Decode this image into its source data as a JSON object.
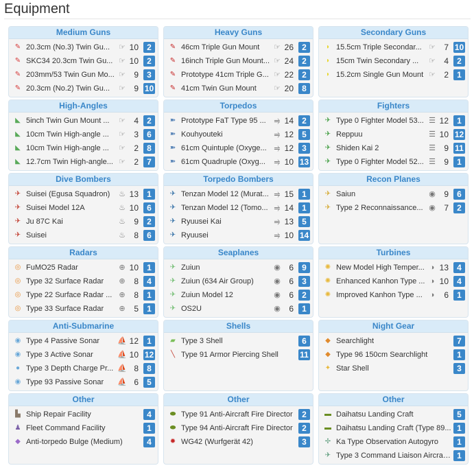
{
  "page": {
    "title": "Equipment"
  },
  "panels": [
    {
      "title": "Medium Guns",
      "items": [
        {
          "name": "20.3cm (No.3) Twin Gu...",
          "stat_icon": "firepower-icon",
          "stat": "10",
          "count": "2",
          "icon": "medium-gun-icon",
          "color": "#d53b3b"
        },
        {
          "name": "SKC34 20.3cm Twin Gu...",
          "stat_icon": "firepower-icon",
          "stat": "10",
          "count": "2",
          "icon": "medium-gun-icon",
          "color": "#d53b3b"
        },
        {
          "name": "203mm/53 Twin Gun Mo...",
          "stat_icon": "firepower-icon",
          "stat": "9",
          "count": "3",
          "icon": "medium-gun-icon",
          "color": "#d53b3b"
        },
        {
          "name": "20.3cm (No.2) Twin Gu...",
          "stat_icon": "firepower-icon",
          "stat": "9",
          "count": "10",
          "icon": "medium-gun-icon",
          "color": "#d53b3b"
        }
      ]
    },
    {
      "title": "Heavy Guns",
      "items": [
        {
          "name": "46cm Triple Gun Mount",
          "stat_icon": "firepower-icon",
          "stat": "26",
          "count": "2",
          "icon": "heavy-gun-icon",
          "color": "#c62828"
        },
        {
          "name": "16inch Triple Gun Mount...",
          "stat_icon": "firepower-icon",
          "stat": "24",
          "count": "2",
          "icon": "heavy-gun-icon",
          "color": "#c62828"
        },
        {
          "name": "Prototype 41cm Triple G...",
          "stat_icon": "firepower-icon",
          "stat": "22",
          "count": "2",
          "icon": "heavy-gun-icon",
          "color": "#c62828"
        },
        {
          "name": "41cm Twin Gun Mount",
          "stat_icon": "firepower-icon",
          "stat": "20",
          "count": "8",
          "icon": "heavy-gun-icon",
          "color": "#c62828"
        }
      ]
    },
    {
      "title": "Secondary Guns",
      "items": [
        {
          "name": "15.5cm Triple Secondar...",
          "stat_icon": "firepower-icon",
          "stat": "7",
          "count": "10",
          "icon": "secondary-gun-icon",
          "color": "#e8d630"
        },
        {
          "name": "15cm Twin Secondary ...",
          "stat_icon": "firepower-icon",
          "stat": "4",
          "count": "2",
          "icon": "secondary-gun-icon",
          "color": "#e8d630"
        },
        {
          "name": "15.2cm Single Gun Mount",
          "stat_icon": "firepower-icon",
          "stat": "2",
          "count": "1",
          "icon": "secondary-gun-icon",
          "color": "#e8d630"
        }
      ]
    },
    {
      "title": "High-Angles",
      "items": [
        {
          "name": "5inch Twin Gun Mount ...",
          "stat_icon": "firepower-icon",
          "stat": "4",
          "count": "2",
          "icon": "high-angle-icon",
          "color": "#5aaa5a"
        },
        {
          "name": "10cm Twin High-angle ...",
          "stat_icon": "firepower-icon",
          "stat": "3",
          "count": "6",
          "icon": "high-angle-icon",
          "color": "#5aaa5a"
        },
        {
          "name": "10cm Twin High-angle ...",
          "stat_icon": "firepower-icon",
          "stat": "2",
          "count": "8",
          "icon": "high-angle-icon",
          "color": "#5aaa5a"
        },
        {
          "name": "12.7cm Twin High-angle...",
          "stat_icon": "firepower-icon",
          "stat": "2",
          "count": "7",
          "icon": "high-angle-icon",
          "color": "#5aaa5a"
        }
      ]
    },
    {
      "title": "Torpedos",
      "items": [
        {
          "name": "Prototype FaT Type 95 ...",
          "stat_icon": "torpedo-stat-icon",
          "stat": "14",
          "count": "2",
          "icon": "torpedo-icon",
          "color": "#5b86b8"
        },
        {
          "name": "Kouhyouteki",
          "stat_icon": "torpedo-stat-icon",
          "stat": "12",
          "count": "5",
          "icon": "torpedo-icon",
          "color": "#5b86b8"
        },
        {
          "name": "61cm Quintuple (Oxyge...",
          "stat_icon": "torpedo-stat-icon",
          "stat": "12",
          "count": "3",
          "icon": "torpedo-icon",
          "color": "#5b86b8"
        },
        {
          "name": "61cm Quadruple (Oxyg...",
          "stat_icon": "torpedo-stat-icon",
          "stat": "10",
          "count": "13",
          "icon": "torpedo-icon",
          "color": "#5b86b8"
        }
      ]
    },
    {
      "title": "Fighters",
      "items": [
        {
          "name": "Type 0 Fighter Model 53...",
          "stat_icon": "anti-air-icon",
          "stat": "12",
          "count": "1",
          "icon": "fighter-icon",
          "color": "#3d9b3d"
        },
        {
          "name": "Reppuu",
          "stat_icon": "anti-air-icon",
          "stat": "10",
          "count": "12",
          "icon": "fighter-icon",
          "color": "#3d9b3d"
        },
        {
          "name": "Shiden Kai 2",
          "stat_icon": "anti-air-icon",
          "stat": "9",
          "count": "11",
          "icon": "fighter-icon",
          "color": "#3d9b3d"
        },
        {
          "name": "Type 0 Fighter Model 52...",
          "stat_icon": "anti-air-icon",
          "stat": "9",
          "count": "1",
          "icon": "fighter-icon",
          "color": "#3d9b3d"
        }
      ]
    },
    {
      "title": "Dive Bombers",
      "items": [
        {
          "name": "Suisei (Egusa Squadron)",
          "stat_icon": "bomb-stat-icon",
          "stat": "13",
          "count": "1",
          "icon": "dive-bomber-icon",
          "color": "#c0392b"
        },
        {
          "name": "Suisei Model 12A",
          "stat_icon": "bomb-stat-icon",
          "stat": "10",
          "count": "6",
          "icon": "dive-bomber-icon",
          "color": "#c0392b"
        },
        {
          "name": "Ju 87C Kai",
          "stat_icon": "bomb-stat-icon",
          "stat": "9",
          "count": "2",
          "icon": "dive-bomber-icon",
          "color": "#c0392b"
        },
        {
          "name": "Suisei",
          "stat_icon": "bomb-stat-icon",
          "stat": "8",
          "count": "6",
          "icon": "dive-bomber-icon",
          "color": "#c0392b"
        }
      ]
    },
    {
      "title": "Torpedo Bombers",
      "items": [
        {
          "name": "Tenzan Model 12 (Murat...",
          "stat_icon": "torpedo-stat-icon",
          "stat": "15",
          "count": "1",
          "icon": "torpedo-bomber-icon",
          "color": "#2e6da4"
        },
        {
          "name": "Tenzan Model 12 (Tomo...",
          "stat_icon": "torpedo-stat-icon",
          "stat": "14",
          "count": "1",
          "icon": "torpedo-bomber-icon",
          "color": "#2e6da4"
        },
        {
          "name": "Ryuusei Kai",
          "stat_icon": "torpedo-stat-icon",
          "stat": "13",
          "count": "5",
          "icon": "torpedo-bomber-icon",
          "color": "#2e6da4"
        },
        {
          "name": "Ryuusei",
          "stat_icon": "torpedo-stat-icon",
          "stat": "10",
          "count": "14",
          "icon": "torpedo-bomber-icon",
          "color": "#2e6da4"
        }
      ]
    },
    {
      "title": "Recon Planes",
      "items": [
        {
          "name": "Saiun",
          "stat_icon": "los-eye-icon",
          "stat": "9",
          "count": "6",
          "icon": "recon-plane-icon",
          "color": "#d4a72c"
        },
        {
          "name": "Type 2 Reconnaissance...",
          "stat_icon": "los-eye-icon",
          "stat": "7",
          "count": "2",
          "icon": "recon-plane-icon",
          "color": "#d4a72c"
        }
      ]
    },
    {
      "title": "Radars",
      "items": [
        {
          "name": "FuMO25 Radar",
          "stat_icon": "accuracy-icon",
          "stat": "10",
          "count": "1",
          "icon": "radar-icon",
          "color": "#e8923a"
        },
        {
          "name": "Type 32 Surface Radar",
          "stat_icon": "accuracy-icon",
          "stat": "8",
          "count": "4",
          "icon": "radar-icon",
          "color": "#e8923a"
        },
        {
          "name": "Type 22 Surface Radar ...",
          "stat_icon": "accuracy-icon",
          "stat": "8",
          "count": "1",
          "icon": "radar-icon",
          "color": "#e8923a"
        },
        {
          "name": "Type 33 Surface Radar",
          "stat_icon": "accuracy-icon",
          "stat": "5",
          "count": "1",
          "icon": "radar-icon",
          "color": "#e8923a"
        }
      ]
    },
    {
      "title": "Seaplanes",
      "items": [
        {
          "name": "Zuiun",
          "stat_icon": "los-eye-icon",
          "stat": "6",
          "count": "9",
          "icon": "seaplane-icon",
          "color": "#6dbb6d"
        },
        {
          "name": "Zuiun (634 Air Group)",
          "stat_icon": "los-eye-icon",
          "stat": "6",
          "count": "3",
          "icon": "seaplane-icon",
          "color": "#6dbb6d"
        },
        {
          "name": "Zuiun Model 12",
          "stat_icon": "los-eye-icon",
          "stat": "6",
          "count": "2",
          "icon": "seaplane-icon",
          "color": "#6dbb6d"
        },
        {
          "name": "OS2U",
          "stat_icon": "los-eye-icon",
          "stat": "6",
          "count": "1",
          "icon": "seaplane-icon",
          "color": "#6dbb6d"
        }
      ]
    },
    {
      "title": "Turbines",
      "items": [
        {
          "name": "New Model High Temper...",
          "stat_icon": "evasion-icon",
          "stat": "13",
          "count": "4",
          "icon": "turbine-icon",
          "color": "#e8b83a"
        },
        {
          "name": "Enhanced Kanhon Type ...",
          "stat_icon": "evasion-icon",
          "stat": "10",
          "count": "4",
          "icon": "turbine-icon",
          "color": "#e8b83a"
        },
        {
          "name": "Improved Kanhon Type ...",
          "stat_icon": "evasion-icon",
          "stat": "6",
          "count": "1",
          "icon": "turbine-icon",
          "color": "#e8b83a"
        }
      ]
    },
    {
      "title": "Anti-Submarine",
      "items": [
        {
          "name": "Type 4 Passive Sonar",
          "stat_icon": "asw-icon",
          "stat": "12",
          "count": "1",
          "icon": "sonar-icon",
          "color": "#6aa8d8"
        },
        {
          "name": "Type 3 Active Sonar",
          "stat_icon": "asw-icon",
          "stat": "10",
          "count": "12",
          "icon": "sonar-icon",
          "color": "#6aa8d8"
        },
        {
          "name": "Type 3 Depth Charge Pr...",
          "stat_icon": "asw-icon",
          "stat": "8",
          "count": "8",
          "icon": "depth-charge-icon",
          "color": "#6aa8d8"
        },
        {
          "name": "Type 93 Passive Sonar",
          "stat_icon": "asw-icon",
          "stat": "6",
          "count": "5",
          "icon": "sonar-icon",
          "color": "#6aa8d8"
        }
      ]
    },
    {
      "title": "Shells",
      "items": [
        {
          "name": "Type 3 Shell",
          "stat_icon": "",
          "stat": "",
          "count": "6",
          "icon": "shell-icon",
          "color": "#7cbf5a"
        },
        {
          "name": "Type 91 Armor Piercing Shell",
          "stat_icon": "",
          "stat": "",
          "count": "11",
          "icon": "ap-shell-icon",
          "color": "#c0392b"
        }
      ]
    },
    {
      "title": "Night Gear",
      "items": [
        {
          "name": "Searchlight",
          "stat_icon": "",
          "stat": "",
          "count": "7",
          "icon": "searchlight-icon",
          "color": "#e08a2c"
        },
        {
          "name": "Type 96 150cm Searchlight",
          "stat_icon": "",
          "stat": "",
          "count": "1",
          "icon": "searchlight-icon",
          "color": "#e08a2c"
        },
        {
          "name": "Star Shell",
          "stat_icon": "",
          "stat": "",
          "count": "3",
          "icon": "star-shell-icon",
          "color": "#e8b83a"
        }
      ]
    },
    {
      "title": "Other",
      "items": [
        {
          "name": "Ship Repair Facility",
          "stat_icon": "",
          "stat": "",
          "count": "4",
          "icon": "repair-facility-icon",
          "color": "#8a7a6a"
        },
        {
          "name": "Fleet Command Facility",
          "stat_icon": "",
          "stat": "",
          "count": "1",
          "icon": "command-facility-icon",
          "color": "#7a5fa8"
        },
        {
          "name": "Anti-torpedo Bulge (Medium)",
          "stat_icon": "",
          "stat": "",
          "count": "4",
          "icon": "bulge-icon",
          "color": "#9a6ac8"
        }
      ]
    },
    {
      "title": "Other",
      "items": [
        {
          "name": "Type 91 Anti-Aircraft Fire Director",
          "stat_icon": "",
          "stat": "",
          "count": "2",
          "icon": "aa-director-icon",
          "color": "#6b8e23"
        },
        {
          "name": "Type 94 Anti-Aircraft Fire Director",
          "stat_icon": "",
          "stat": "",
          "count": "2",
          "icon": "aa-director-icon",
          "color": "#6b8e23"
        },
        {
          "name": "WG42 (Wurfgerät 42)",
          "stat_icon": "",
          "stat": "",
          "count": "3",
          "icon": "rocket-launcher-icon",
          "color": "#c62828"
        }
      ]
    },
    {
      "title": "Other",
      "items": [
        {
          "name": "Daihatsu Landing Craft",
          "stat_icon": "",
          "stat": "",
          "count": "5",
          "icon": "landing-craft-icon",
          "color": "#6b8e23"
        },
        {
          "name": "Daihatsu Landing Craft (Type 89...",
          "stat_icon": "",
          "stat": "",
          "count": "1",
          "icon": "landing-craft-icon",
          "color": "#6b8e23"
        },
        {
          "name": "Ka Type Observation Autogyro",
          "stat_icon": "",
          "stat": "",
          "count": "1",
          "icon": "autogyro-icon",
          "color": "#5a9a7a"
        },
        {
          "name": "Type 3 Command Liaison Aircraf...",
          "stat_icon": "",
          "stat": "",
          "count": "1",
          "icon": "liaison-aircraft-icon",
          "color": "#5a9a7a"
        }
      ]
    }
  ]
}
